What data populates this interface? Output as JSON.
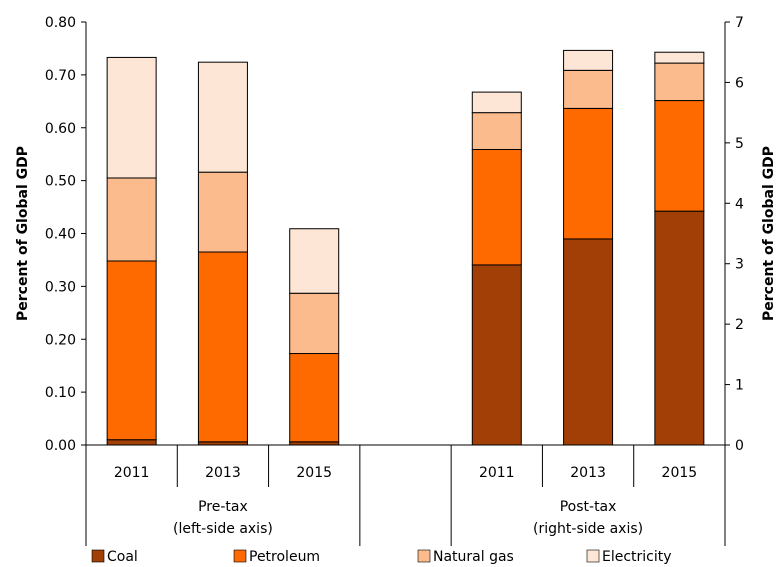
{
  "chart_data": {
    "type": "bar",
    "stacked": true,
    "title": "",
    "colors": {
      "Coal": "#a13f06",
      "Petroleum": "#ff6a00",
      "Natural gas": "#fcbb8c",
      "Electricity": "#fde6d6"
    },
    "series_names": [
      "Coal",
      "Petroleum",
      "Natural gas",
      "Electricity"
    ],
    "left_axis": {
      "ylabel": "Percent of Global GDP",
      "ylim": [
        0,
        0.8
      ],
      "ticks": [
        "0.00",
        "0.10",
        "0.20",
        "0.30",
        "0.40",
        "0.50",
        "0.60",
        "0.70",
        "0.80"
      ]
    },
    "right_axis": {
      "ylabel": "Percent of Global GDP",
      "ylim": [
        0,
        7
      ],
      "ticks": [
        "0",
        "1",
        "2",
        "3",
        "4",
        "5",
        "6",
        "7"
      ]
    },
    "groups": [
      {
        "label_line1": "Pre-tax",
        "label_line2": "(left-side axis)",
        "axis": "left",
        "categories": [
          "2011",
          "2013",
          "2015"
        ],
        "series": [
          {
            "name": "Coal",
            "values": [
              0.01,
              0.006,
              0.006
            ]
          },
          {
            "name": "Petroleum",
            "values": [
              0.338,
              0.359,
              0.167
            ]
          },
          {
            "name": "Natural gas",
            "values": [
              0.157,
              0.151,
              0.114
            ]
          },
          {
            "name": "Electricity",
            "values": [
              0.228,
              0.208,
              0.122
            ]
          }
        ]
      },
      {
        "label_line1": "Post-tax",
        "label_line2": "(right-side axis)",
        "axis": "right",
        "categories": [
          "2011",
          "2013",
          "2015"
        ],
        "series": [
          {
            "name": "Coal",
            "values": [
              2.98,
              3.41,
              3.87
            ]
          },
          {
            "name": "Petroleum",
            "values": [
              1.91,
              2.16,
              1.83
            ]
          },
          {
            "name": "Natural gas",
            "values": [
              0.61,
              0.63,
              0.62
            ]
          },
          {
            "name": "Electricity",
            "values": [
              0.34,
              0.33,
              0.18
            ]
          }
        ]
      }
    ],
    "legend": {
      "placement": "bottom",
      "items": [
        "Coal",
        "Petroleum",
        "Natural gas",
        "Electricity"
      ]
    },
    "grid": false
  }
}
